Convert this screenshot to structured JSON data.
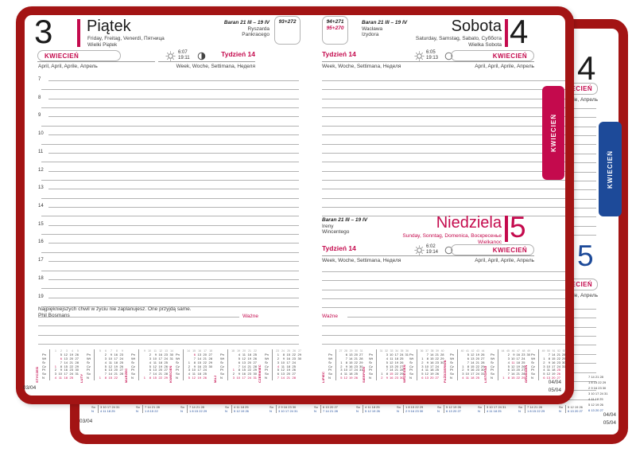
{
  "colors": {
    "cover": "#a31414",
    "accent": "#c40a4d",
    "accent_blue": "#1d4a99",
    "rule_line": "#b3b3b3"
  },
  "front": {
    "tab": "KWIECIEŃ",
    "left": {
      "day_number": "3",
      "day_name": "Piątek",
      "day_langs": "Friday, Freitag, Venerdì, Пятница",
      "holiday": "Wielki Piątek",
      "zodiac": "Baran 21 III – 19 IV",
      "name_1": "Ryszarda",
      "name_2": "Pankracego",
      "day_counter": "93+272",
      "month_label": "KWIECIEŃ",
      "month_langs": "April, April, Aprile, Апрель",
      "week_label": "Tydzień 14",
      "week_langs": "Week, Woche, Settimana, Неделя",
      "sunrise": "6:07",
      "sunset": "19:11",
      "hours": {
        "start": 7,
        "end": 19
      },
      "quote": "Najpiękniejszych chwil w życiu nie zaplanujesz. One przyjdą same.",
      "quote_author": "Phil Bosmans",
      "important": "Ważne",
      "page_number": "03/04"
    },
    "right": {
      "day_number": "4",
      "day_name": "Sobota",
      "day_langs": "Saturday, Samstag, Sabato, Суббота",
      "holiday": "Wielka Sobota",
      "zodiac": "Baran 21 III – 19 IV",
      "name_1": "Wacława",
      "name_2": "Izydora",
      "day_counter_1": "94+271",
      "day_counter_2": "95+270",
      "month_label": "KWIECIEŃ",
      "month_langs": "April, April, Aprile, Апрель",
      "week_label": "Tydzień 14",
      "week_langs": "Week, Woche, Settimana, Неделя",
      "sunrise": "6:05",
      "sunset": "19:13",
      "important": "Ważne",
      "page_number_1": "04/04",
      "page_number_2": "05/04"
    },
    "sunday": {
      "day_number": "5",
      "day_name": "Niedziela",
      "day_langs": "Sunday, Sonntag, Domenica, Воскресенье",
      "holiday": "Wielkanoc",
      "zodiac": "Baran 21 III – 19 IV",
      "name_1": "Ireny",
      "name_2": "Wincentego",
      "month_label": "KWIECIEŃ",
      "month_langs": "April, April, Aprile, Апрель",
      "week_label": "Tydzień 14",
      "week_langs": "Week, Woche, Settimana, Неделя",
      "sunrise": "6:02",
      "sunset": "19:14"
    }
  },
  "back": {
    "tab": "KWIECIEŃ",
    "day_number_sat": "4",
    "day_number_sun": "5",
    "month_label": "KWIECIEŃ",
    "month_langs": "April, April, Aprile, Апрель",
    "page_number_left": "03/04",
    "page_number_1": "04/04",
    "page_number_2": "05/04"
  },
  "calendars": {
    "day_labels": [
      "Pn",
      "Wt",
      "Śr",
      "Cz",
      "Pt",
      "So",
      "N"
    ],
    "left_months": [
      {
        "name": "STYCZEŃ",
        "first_dow": 3,
        "days": 31,
        "weeks": "1 2 3 4 5",
        "red_days": [
          1,
          6
        ]
      },
      {
        "name": "LUTY",
        "first_dow": 6,
        "days": 28,
        "weeks": "5 6 7 8 9",
        "red_days": []
      },
      {
        "name": "MARZEC",
        "first_dow": 6,
        "days": 31,
        "weeks": "9 10 11 12 13 14",
        "red_days": []
      },
      {
        "name": "KWIECIEŃ",
        "first_dow": 2,
        "days": 30,
        "weeks": "14 15 16 17 18",
        "red_days": [
          5,
          6
        ]
      },
      {
        "name": "MAJ",
        "first_dow": 4,
        "days": 31,
        "weeks": "18 19 20 21 22",
        "red_days": [
          1,
          3
        ]
      },
      {
        "name": "CZERWIEC",
        "first_dow": 0,
        "days": 30,
        "weeks": "23 24 25 26 27",
        "red_days": [
          4
        ]
      }
    ],
    "right_months": [
      {
        "name": "LIPIEC",
        "first_dow": 2,
        "days": 31,
        "weeks": "27 28 29 30 31",
        "red_days": []
      },
      {
        "name": "SIERPIEŃ",
        "first_dow": 5,
        "days": 31,
        "weeks": "31 32 33 34 35 36",
        "red_days": [
          15
        ]
      },
      {
        "name": "WRZESIEŃ",
        "first_dow": 1,
        "days": 30,
        "weeks": "36 37 38 39 40",
        "red_days": []
      },
      {
        "name": "PAŹDZIERNIK",
        "first_dow": 3,
        "days": 31,
        "weeks": "40 41 42 43 44",
        "red_days": []
      },
      {
        "name": "LISTOPAD",
        "first_dow": 6,
        "days": 30,
        "weeks": "44 45 46 47 48 49",
        "red_days": [
          1,
          11
        ]
      },
      {
        "name": "GRUDZIEŃ",
        "first_dow": 1,
        "days": 31,
        "weeks": "49 50 51 52 53",
        "red_days": [
          25,
          26
        ]
      }
    ]
  }
}
